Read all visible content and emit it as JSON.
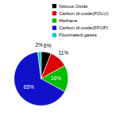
{
  "chart_data": {
    "type": "pie",
    "categories": [
      "Nitrous Oxide",
      "Carbon di-oxide(FOLU)",
      "Methane",
      "Carbon di-oxide(FFUP)",
      "Fluorinated gases"
    ],
    "values": [
      6,
      11,
      16,
      65,
      2
    ],
    "value_labels": [
      "6%",
      "11%",
      "16%",
      "65%",
      "2%"
    ],
    "colors": [
      "#000000",
      "#dd0000",
      "#00bb00",
      "#1111cc",
      "#00cccc"
    ],
    "data_labels": true,
    "legend": "upper right"
  }
}
